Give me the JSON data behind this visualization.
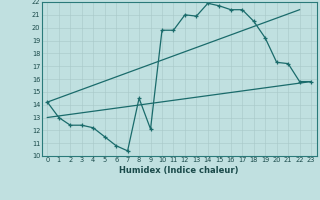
{
  "xlabel": "Humidex (Indice chaleur)",
  "bg_color": "#c0e0e0",
  "grid_color": "#b0cece",
  "line_color": "#1a6b6b",
  "xlim": [
    -0.5,
    23.5
  ],
  "ylim": [
    10,
    22
  ],
  "xticks": [
    0,
    1,
    2,
    3,
    4,
    5,
    6,
    7,
    8,
    9,
    10,
    11,
    12,
    13,
    14,
    15,
    16,
    17,
    18,
    19,
    20,
    21,
    22,
    23
  ],
  "yticks": [
    10,
    11,
    12,
    13,
    14,
    15,
    16,
    17,
    18,
    19,
    20,
    21,
    22
  ],
  "line1_x": [
    0,
    1,
    2,
    3,
    4,
    5,
    6,
    7,
    8,
    9,
    10,
    11,
    12,
    13,
    14,
    15,
    16,
    17,
    18,
    19,
    20,
    21,
    22,
    23
  ],
  "line1_y": [
    14.2,
    13.0,
    12.4,
    12.4,
    12.2,
    11.5,
    10.8,
    10.4,
    14.5,
    12.1,
    19.8,
    19.8,
    21.0,
    20.9,
    21.9,
    21.7,
    21.4,
    21.4,
    20.5,
    19.2,
    17.3,
    17.2,
    15.8,
    15.8
  ],
  "line2_x": [
    0,
    22
  ],
  "line2_y": [
    14.2,
    21.4
  ],
  "line3_x": [
    0,
    23
  ],
  "line3_y": [
    13.0,
    15.8
  ]
}
